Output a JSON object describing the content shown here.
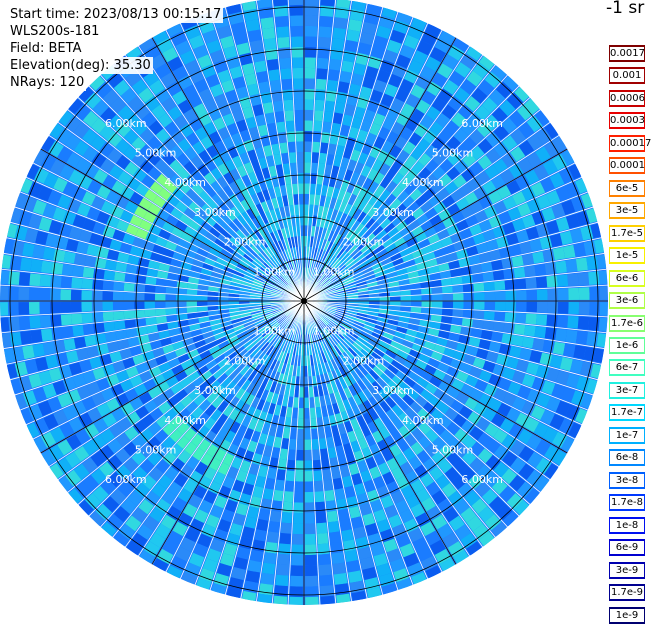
{
  "info": {
    "start_time": "Start time: 2023/08/13 00:15:17",
    "instrument": "WLS200s-181",
    "field": "Field: BETA",
    "elevation": "Elevation(deg): 35.30",
    "nrays": "NRays: 120"
  },
  "colorbar": {
    "unit": "-1 sr",
    "ticks": [
      "0.0017",
      "0.001",
      "0.0006",
      "0.0003",
      "0.00017",
      "0.0001",
      "6e-5",
      "3e-5",
      "1.7e-5",
      "1e-5",
      "6e-6",
      "3e-6",
      "1.7e-6",
      "1e-6",
      "6e-7",
      "3e-7",
      "1.7e-7",
      "1e-7",
      "6e-8",
      "3e-8",
      "1.7e-8",
      "1e-8",
      "6e-9",
      "3e-9",
      "1.7e-9",
      "1e-9"
    ],
    "colors": [
      "#7f0000",
      "#a00000",
      "#c80000",
      "#e80000",
      "#ff2000",
      "#ff5000",
      "#ff8000",
      "#ffa800",
      "#ffd000",
      "#f8f000",
      "#d8ff20",
      "#b0ff48",
      "#88ff70",
      "#60ff98",
      "#40ffc0",
      "#20f0e0",
      "#00d8ff",
      "#00b0ff",
      "#0088ff",
      "#0060ff",
      "#0038ff",
      "#0010f0",
      "#0000d0",
      "#0000b0",
      "#000090",
      "#000070"
    ]
  },
  "range_labels": [
    "1.00km",
    "2.00km",
    "3.00km",
    "4.00km",
    "5.00km",
    "6.00km"
  ],
  "rays": 120
}
